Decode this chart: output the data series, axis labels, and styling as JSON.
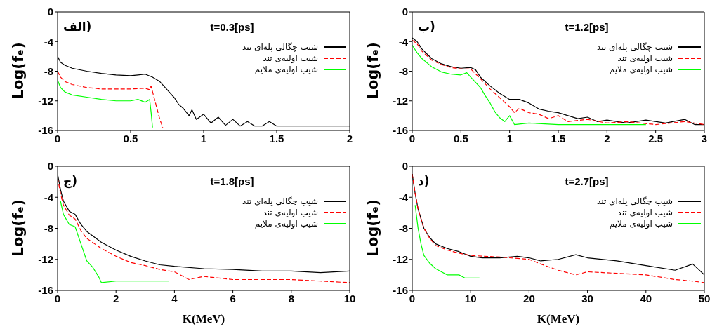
{
  "chart_data": [
    {
      "type": "line",
      "title": "t=0.3[ps]",
      "ylabel": "Log(fₑ)",
      "annotations": [
        "الف)"
      ],
      "xlim": [
        0,
        2
      ],
      "xticks": [
        0,
        0.5,
        1,
        1.5,
        2
      ],
      "ylim": [
        -16,
        0
      ],
      "yticks": [
        -16,
        -12,
        -8,
        -4,
        0
      ],
      "legend": "top right",
      "grid": false,
      "series": [
        {
          "name": "شیب چگالی پله‌ای تند",
          "color": "#000000",
          "line_style": "solid",
          "x": [
            0,
            0.02,
            0.05,
            0.1,
            0.2,
            0.3,
            0.4,
            0.5,
            0.55,
            0.6,
            0.65,
            0.7,
            0.75,
            0.8,
            0.83,
            0.86,
            0.9,
            0.92,
            0.95,
            1.0,
            1.05,
            1.1,
            1.15,
            1.2,
            1.25,
            1.3,
            1.35,
            1.4,
            1.45,
            1.5,
            2
          ],
          "values": [
            -6,
            -6.8,
            -7.2,
            -7.6,
            -8.0,
            -8.3,
            -8.5,
            -8.6,
            -8.5,
            -8.4,
            -8.8,
            -9.4,
            -10.5,
            -11.6,
            -12.5,
            -13,
            -14,
            -13.2,
            -14.5,
            -13.8,
            -15,
            -14.2,
            -15.3,
            -14.5,
            -15.4,
            -14.8,
            -15.4,
            -15.4,
            -14.8,
            -15.4,
            -15.4
          ]
        },
        {
          "name": "شیب اولیه‌ی تند",
          "color": "#ff0000",
          "line_style": "dashed",
          "x": [
            0,
            0.02,
            0.05,
            0.1,
            0.2,
            0.3,
            0.4,
            0.5,
            0.6,
            0.63,
            0.64,
            0.66,
            0.68,
            0.7,
            0.72
          ],
          "values": [
            -8,
            -8.8,
            -9.4,
            -9.8,
            -10.2,
            -10.4,
            -10.4,
            -10.4,
            -10.3,
            -10.5,
            -10,
            -11.5,
            -13,
            -14.5,
            -15.6
          ]
        },
        {
          "name": "شیب اولیه‌ی ملایم",
          "color": "#00ff00",
          "line_style": "solid",
          "x": [
            0,
            0.02,
            0.05,
            0.1,
            0.2,
            0.3,
            0.4,
            0.5,
            0.55,
            0.6,
            0.63,
            0.64,
            0.65
          ],
          "values": [
            -9.2,
            -10.2,
            -10.8,
            -11.2,
            -11.5,
            -11.8,
            -12,
            -12,
            -11.8,
            -12.2,
            -11.8,
            -13.5,
            -15.6
          ]
        }
      ]
    },
    {
      "type": "line",
      "title": "t=1.2[ps]",
      "ylabel": "Log(fₑ)",
      "annotations": [
        "ب)"
      ],
      "xlim": [
        0,
        3
      ],
      "xticks": [
        0,
        0.5,
        1,
        1.5,
        2,
        2.5,
        3
      ],
      "ylim": [
        -16,
        0
      ],
      "yticks": [
        -16,
        -12,
        -8,
        -4,
        0
      ],
      "legend": "top right",
      "grid": false,
      "series": [
        {
          "name": "شیب چگالی پله‌ای تند",
          "color": "#000000",
          "line_style": "solid",
          "x": [
            0,
            0.05,
            0.1,
            0.2,
            0.3,
            0.4,
            0.5,
            0.6,
            0.65,
            0.7,
            0.8,
            0.9,
            1.0,
            1.1,
            1.2,
            1.3,
            1.4,
            1.5,
            1.6,
            1.7,
            1.8,
            1.9,
            2.0,
            2.2,
            2.4,
            2.6,
            2.8,
            2.9,
            3
          ],
          "values": [
            -3.5,
            -4,
            -5,
            -6.3,
            -7,
            -7.4,
            -7.6,
            -7.5,
            -7.8,
            -8.8,
            -10,
            -11,
            -11.8,
            -11.8,
            -12.3,
            -13.1,
            -13.4,
            -13.6,
            -14,
            -14.4,
            -14.2,
            -14.8,
            -14.6,
            -15,
            -14.6,
            -15,
            -14.5,
            -15.2,
            -15.2
          ]
        },
        {
          "name": "شیب اولیه‌ی تند",
          "color": "#ff0000",
          "line_style": "dashed",
          "x": [
            0,
            0.05,
            0.1,
            0.2,
            0.3,
            0.4,
            0.5,
            0.6,
            0.7,
            0.8,
            0.9,
            1.0,
            1.05,
            1.1,
            1.2,
            1.3,
            1.4,
            1.5,
            1.6,
            1.8,
            2,
            2.2,
            2.5,
            2.8,
            3
          ],
          "values": [
            -3.8,
            -4.3,
            -5.3,
            -6.5,
            -7.1,
            -7.5,
            -7.7,
            -7.7,
            -9,
            -10.4,
            -11.6,
            -12.8,
            -13.6,
            -13,
            -13.6,
            -13.8,
            -14.4,
            -14,
            -14.8,
            -14.5,
            -15,
            -14.8,
            -15.2,
            -14.8,
            -15.2
          ]
        },
        {
          "name": "شیب اولیه‌ی ملایم",
          "color": "#00ff00",
          "line_style": "solid",
          "x": [
            0,
            0.05,
            0.1,
            0.2,
            0.3,
            0.4,
            0.5,
            0.56,
            0.6,
            0.7,
            0.75,
            0.8,
            0.85,
            0.9,
            0.95,
            1.0,
            1.05,
            1.2,
            1.5,
            2.0,
            2.4
          ],
          "values": [
            -4.5,
            -5.5,
            -6.3,
            -7.4,
            -8.1,
            -8.4,
            -8.5,
            -8.2,
            -8.8,
            -10.2,
            -11.3,
            -12.3,
            -13.5,
            -14.3,
            -14.8,
            -14,
            -15.2,
            -15,
            -15.2,
            -15.2,
            -15.2
          ]
        }
      ]
    },
    {
      "type": "line",
      "title": "t=1.8[ps]",
      "xlabel": "K(MeV)",
      "ylabel": "Log(fₑ)",
      "annotations": [
        "ج)"
      ],
      "xlim": [
        0,
        10
      ],
      "xticks": [
        0,
        2,
        4,
        6,
        8,
        10
      ],
      "ylim": [
        -16,
        0
      ],
      "yticks": [
        -16,
        -12,
        -8,
        -4,
        0
      ],
      "legend": "top right",
      "grid": false,
      "series": [
        {
          "name": "شیب چگالی پله‌ای تند",
          "color": "#000000",
          "line_style": "solid",
          "x": [
            0,
            0.1,
            0.2,
            0.4,
            0.6,
            0.8,
            1,
            1.5,
            2,
            2.5,
            3,
            3.5,
            4,
            5,
            6,
            7,
            8,
            9,
            10
          ],
          "values": [
            -1,
            -3,
            -4.5,
            -5.8,
            -6.2,
            -7.5,
            -8.4,
            -9.8,
            -10.8,
            -11.6,
            -12.2,
            -12.7,
            -12.9,
            -13.2,
            -13.3,
            -13.5,
            -13.5,
            -13.7,
            -13.5
          ]
        },
        {
          "name": "شیب اولیه‌ی تند",
          "color": "#ff0000",
          "line_style": "dashed",
          "x": [
            0,
            0.1,
            0.2,
            0.4,
            0.6,
            0.8,
            1,
            1.5,
            2,
            2.5,
            3,
            3.5,
            4,
            4.5,
            5,
            6,
            7,
            8,
            9,
            10
          ],
          "values": [
            -1.5,
            -3.5,
            -5,
            -6.3,
            -6.8,
            -8.3,
            -9.3,
            -10.6,
            -11.6,
            -12.4,
            -12.8,
            -13.3,
            -13.6,
            -14.6,
            -14.2,
            -14.6,
            -14.6,
            -14.6,
            -14.8,
            -15
          ]
        },
        {
          "name": "شیب اولیه‌ی ملایم",
          "color": "#00ff00",
          "line_style": "solid",
          "x": [
            0.1,
            0.2,
            0.4,
            0.6,
            0.8,
            1,
            1.2,
            1.4,
            1.5,
            2,
            3,
            3.8
          ],
          "values": [
            -4.5,
            -6.2,
            -7.5,
            -7.8,
            -10,
            -12.2,
            -13,
            -14.2,
            -15,
            -14.8,
            -14.8,
            -14.8
          ]
        }
      ]
    },
    {
      "type": "line",
      "title": "t=2.7[ps]",
      "xlabel": "K(MeV)",
      "ylabel": "Log(fₑ)",
      "annotations": [
        "د)"
      ],
      "xlim": [
        0,
        50
      ],
      "xticks": [
        0,
        10,
        20,
        30,
        40,
        50
      ],
      "ylim": [
        -16,
        0
      ],
      "yticks": [
        -16,
        -12,
        -8,
        -4,
        0
      ],
      "legend": "top right",
      "grid": false,
      "series": [
        {
          "name": "شیب چگالی پله‌ای تند",
          "color": "#000000",
          "line_style": "solid",
          "x": [
            0,
            0.5,
            1,
            2,
            3,
            4,
            6,
            8,
            10,
            12,
            15,
            18,
            20,
            22,
            25,
            28,
            30,
            35,
            40,
            45,
            48,
            50
          ],
          "values": [
            -1,
            -3.5,
            -5.5,
            -8,
            -9.2,
            -10,
            -10.6,
            -11,
            -11.6,
            -11.8,
            -11.8,
            -11.6,
            -11.8,
            -12.2,
            -12,
            -11.4,
            -11.8,
            -12.2,
            -12.8,
            -13.4,
            -12.6,
            -14
          ]
        },
        {
          "name": "شیب اولیه‌ی تند",
          "color": "#ff0000",
          "line_style": "dashed",
          "x": [
            0,
            0.5,
            1,
            2,
            3,
            4,
            6,
            8,
            10,
            15,
            20,
            22,
            25,
            28,
            30,
            35,
            40,
            45,
            48,
            50
          ],
          "values": [
            -1,
            -3.5,
            -5.5,
            -8,
            -9.3,
            -10.2,
            -10.8,
            -11.2,
            -11.5,
            -11.7,
            -12,
            -12.6,
            -13.4,
            -14,
            -13.6,
            -13.8,
            -14,
            -14.6,
            -14.8,
            -15
          ]
        },
        {
          "name": "شیب اولیه‌ی ملایم",
          "color": "#00ff00",
          "line_style": "solid",
          "x": [
            0.5,
            1,
            1.5,
            2,
            3,
            4,
            5,
            6,
            8,
            9,
            11.5
          ],
          "values": [
            -5,
            -8,
            -10,
            -11.5,
            -12.5,
            -13.2,
            -13.6,
            -14,
            -14,
            -14.4,
            -14.4
          ]
        }
      ]
    }
  ]
}
